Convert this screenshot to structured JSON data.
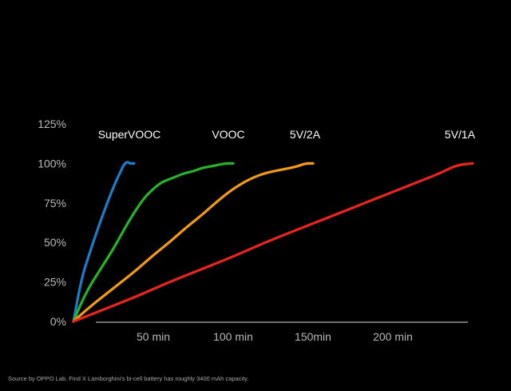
{
  "chart_data": {
    "type": "line",
    "xlabel": "",
    "ylabel": "",
    "xlim": [
      0,
      250
    ],
    "ylim": [
      0,
      125
    ],
    "grid": false,
    "legend": "none",
    "y_ticks": [
      {
        "value": 125,
        "label": "125%"
      },
      {
        "value": 100,
        "label": "100%"
      },
      {
        "value": 75,
        "label": "75%"
      },
      {
        "value": 50,
        "label": "50%"
      },
      {
        "value": 25,
        "label": "25%"
      },
      {
        "value": 0,
        "label": "0%"
      }
    ],
    "x_ticks": [
      {
        "value": 50,
        "label": "50 min"
      },
      {
        "value": 100,
        "label": "100 min"
      },
      {
        "value": 150,
        "label": "150min"
      },
      {
        "value": 200,
        "label": "200 min"
      }
    ],
    "series": [
      {
        "name": "SuperVOOC",
        "color": "#1a7fc8",
        "label_x": 35,
        "x": [
          0,
          5,
          10,
          15,
          20,
          25,
          30,
          32,
          34,
          35,
          37,
          38
        ],
        "y": [
          0,
          27,
          43,
          58,
          72,
          85,
          96,
          100,
          101,
          100,
          100,
          100
        ]
      },
      {
        "name": "VOOC",
        "color": "#26b327",
        "label_x": 97,
        "x": [
          0,
          5,
          10,
          15,
          20,
          25,
          30,
          35,
          40,
          45,
          50,
          55,
          60,
          65,
          70,
          75,
          80,
          85,
          90,
          95,
          100
        ],
        "y": [
          0,
          12,
          22,
          30,
          38,
          46,
          55,
          64,
          72,
          79,
          84,
          88,
          90,
          92,
          94,
          95,
          97,
          98,
          99,
          100,
          100
        ]
      },
      {
        "name": "5V/2A",
        "color": "#f39a17",
        "label_x": 145,
        "x": [
          0,
          10,
          20,
          30,
          40,
          50,
          60,
          70,
          80,
          90,
          100,
          110,
          120,
          130,
          140,
          145,
          150
        ],
        "y": [
          0,
          9,
          17,
          25,
          33,
          42,
          50,
          59,
          67,
          76,
          84,
          90,
          94,
          96,
          98,
          100,
          100
        ]
      },
      {
        "name": "5V/1A",
        "color": "#e8251a",
        "label_x": 242,
        "x": [
          0,
          20,
          40,
          60,
          80,
          100,
          120,
          140,
          160,
          180,
          200,
          220,
          230,
          240,
          250
        ],
        "y": [
          0,
          8,
          16,
          25,
          33,
          41,
          50,
          58,
          66,
          74,
          82,
          90,
          94,
          99,
          100
        ]
      }
    ]
  },
  "source_note": "Source by OPPO Lab. Find X Lamborghini's bi-cell battery has roughly 3400 mAh capacity."
}
